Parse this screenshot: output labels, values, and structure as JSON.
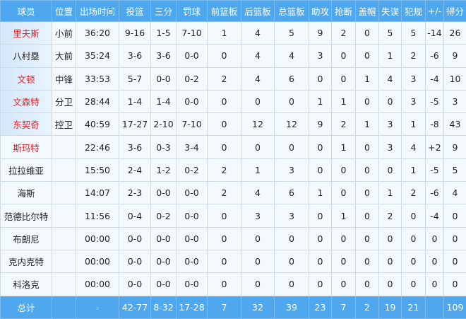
{
  "headers": [
    "球员",
    "位置",
    "出场时间",
    "投篮",
    "三分",
    "罚球",
    "前篮板",
    "后篮板",
    "总篮板",
    "助攻",
    "抢断",
    "盖帽",
    "失误",
    "犯规",
    "+/-",
    "得分"
  ],
  "colors": {
    "header_bg": "#4fa8ee",
    "highlight_name": "#e0222b",
    "row_bg": "#f4f9fe"
  },
  "players": [
    {
      "name": "里夫斯",
      "red": true,
      "starter": true,
      "stats": [
        "小前",
        "36:20",
        "9-16",
        "1-5",
        "7-10",
        "1",
        "4",
        "5",
        "9",
        "2",
        "0",
        "5",
        "5",
        "-14",
        "26"
      ]
    },
    {
      "name": "八村塁",
      "red": false,
      "starter": true,
      "stats": [
        "大前",
        "35:24",
        "3-6",
        "3-6",
        "0-0",
        "0",
        "4",
        "4",
        "3",
        "0",
        "0",
        "1",
        "2",
        "-6",
        "9"
      ]
    },
    {
      "name": "文顿",
      "red": true,
      "starter": true,
      "stats": [
        "中锋",
        "33:53",
        "5-7",
        "0-0",
        "0-2",
        "2",
        "4",
        "6",
        "0",
        "0",
        "1",
        "4",
        "3",
        "-4",
        "10"
      ]
    },
    {
      "name": "文森特",
      "red": true,
      "starter": true,
      "stats": [
        "分卫",
        "28:44",
        "1-4",
        "1-4",
        "0-0",
        "0",
        "0",
        "0",
        "1",
        "1",
        "0",
        "0",
        "3",
        "-5",
        "3"
      ]
    },
    {
      "name": "东契奇",
      "red": true,
      "starter": true,
      "stats": [
        "控卫",
        "40:59",
        "17-27",
        "2-10",
        "7-10",
        "0",
        "12",
        "12",
        "9",
        "2",
        "1",
        "3",
        "1",
        "-8",
        "43"
      ]
    },
    {
      "name": "斯玛特",
      "red": true,
      "starter": false,
      "stats": [
        "",
        "22:46",
        "3-6",
        "0-3",
        "3-4",
        "0",
        "0",
        "0",
        "0",
        "1",
        "0",
        "3",
        "4",
        "+2",
        "9"
      ]
    },
    {
      "name": "拉拉维亚",
      "red": false,
      "starter": false,
      "stats": [
        "",
        "15:50",
        "2-4",
        "1-2",
        "0-2",
        "2",
        "1",
        "3",
        "0",
        "0",
        "0",
        "0",
        "1",
        "-5",
        "5"
      ]
    },
    {
      "name": "海斯",
      "red": false,
      "starter": false,
      "stats": [
        "",
        "14:07",
        "2-3",
        "0-0",
        "0-0",
        "2",
        "4",
        "6",
        "1",
        "0",
        "0",
        "1",
        "2",
        "-6",
        "4"
      ]
    },
    {
      "name": "范德比尔特",
      "red": false,
      "starter": false,
      "stats": [
        "",
        "11:56",
        "0-4",
        "0-2",
        "0-0",
        "0",
        "3",
        "3",
        "0",
        "1",
        "0",
        "2",
        "0",
        "-4",
        "0"
      ]
    },
    {
      "name": "布朗尼",
      "red": false,
      "starter": false,
      "stats": [
        "",
        "00:00",
        "0-0",
        "0-0",
        "0-0",
        "0",
        "0",
        "0",
        "0",
        "0",
        "0",
        "0",
        "0",
        "0",
        "0"
      ]
    },
    {
      "name": "克内克特",
      "red": false,
      "starter": false,
      "stats": [
        "",
        "00:00",
        "0-0",
        "0-0",
        "0-0",
        "0",
        "0",
        "0",
        "0",
        "0",
        "0",
        "0",
        "0",
        "0",
        "0"
      ]
    },
    {
      "name": "科洛克",
      "red": false,
      "starter": false,
      "stats": [
        "",
        "00:00",
        "0-0",
        "0-0",
        "0-0",
        "0",
        "0",
        "0",
        "0",
        "0",
        "0",
        "0",
        "0",
        "0",
        "0"
      ]
    }
  ],
  "total": {
    "label": "总计",
    "stats": [
      "",
      "-",
      "42-77",
      "8-32",
      "17-28",
      "7",
      "32",
      "39",
      "23",
      "7",
      "2",
      "19",
      "21",
      "",
      "109"
    ]
  }
}
